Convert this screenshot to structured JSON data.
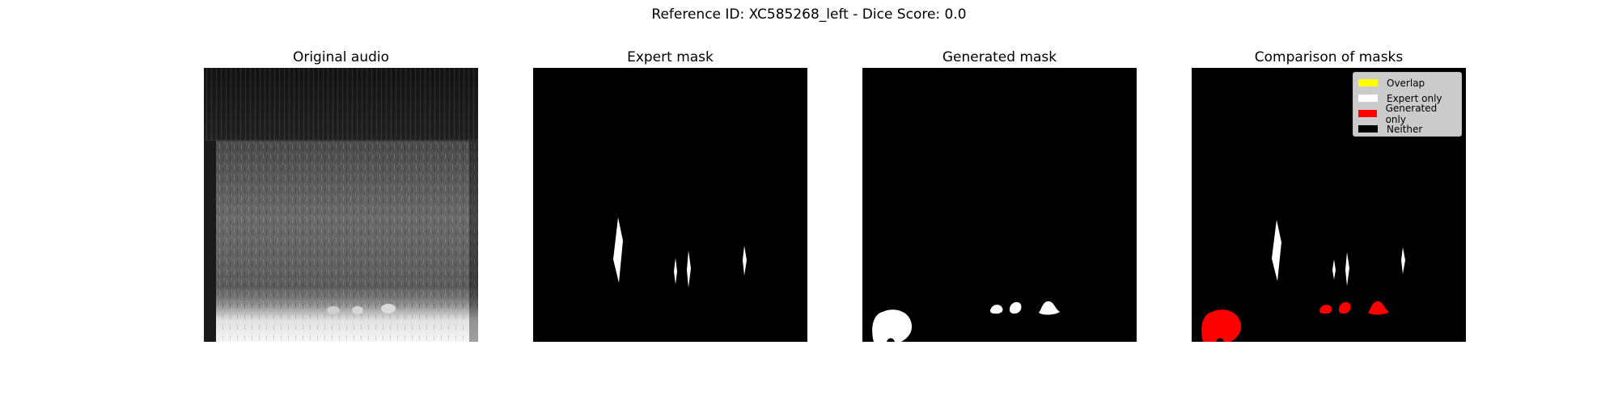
{
  "figure": {
    "suptitle": "Reference ID: XC585268_left - Dice Score: 0.0"
  },
  "panels": {
    "original": {
      "title": "Original audio"
    },
    "expert": {
      "title": "Expert mask"
    },
    "generated": {
      "title": "Generated mask"
    },
    "comparison": {
      "title": "Comparison of masks"
    }
  },
  "legend": {
    "items": [
      {
        "label": "Overlap",
        "color": "#ffff00"
      },
      {
        "label": "Expert only",
        "color": "#ffffff"
      },
      {
        "label": "Generated only",
        "color": "#ff0000"
      },
      {
        "label": "Neither",
        "color": "#000000"
      }
    ]
  },
  "colors": {
    "background": "#000000",
    "mask": "#ffffff",
    "generated_only": "#ff0000",
    "expert_only": "#ffffff"
  }
}
